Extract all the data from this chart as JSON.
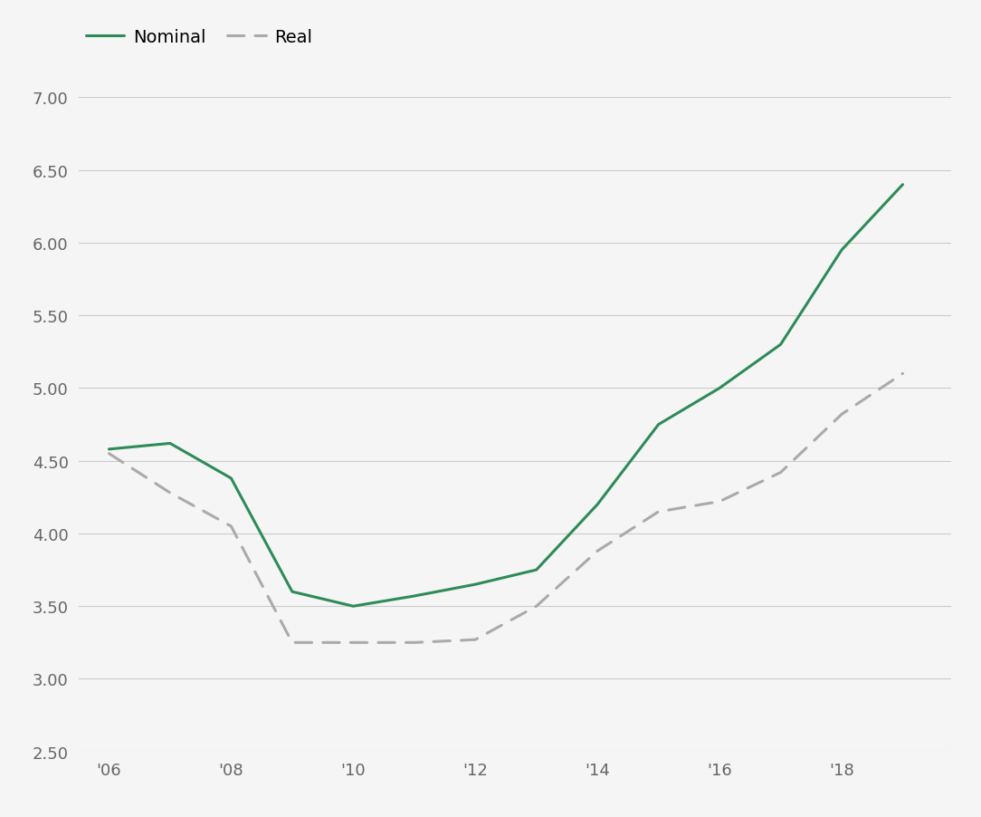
{
  "nominal_x": [
    2006,
    2007,
    2008,
    2009,
    2010,
    2011,
    2012,
    2013,
    2014,
    2015,
    2016,
    2017,
    2018,
    2019
  ],
  "nominal_y": [
    4.58,
    4.62,
    4.38,
    3.6,
    3.5,
    3.57,
    3.65,
    3.75,
    4.2,
    4.75,
    5.0,
    5.3,
    5.95,
    6.4
  ],
  "real_x": [
    2006,
    2007,
    2008,
    2009,
    2010,
    2011,
    2012,
    2013,
    2014,
    2015,
    2016,
    2017,
    2018,
    2019
  ],
  "real_y": [
    4.55,
    4.28,
    4.05,
    3.25,
    3.25,
    3.25,
    3.27,
    3.5,
    3.88,
    4.15,
    4.22,
    4.42,
    4.82,
    5.1
  ],
  "nominal_color": "#2e8b57",
  "real_color": "#aaaaaa",
  "background_color": "#f5f5f5",
  "ylim": [
    2.5,
    7.0
  ],
  "yticks": [
    2.5,
    3.0,
    3.5,
    4.0,
    4.5,
    5.0,
    5.5,
    6.0,
    6.5,
    7.0
  ],
  "xtick_positions": [
    2006,
    2008,
    2010,
    2012,
    2014,
    2016,
    2018
  ],
  "xtick_labels": [
    "'06",
    "'08",
    "'10",
    "'12",
    "'14",
    "'16",
    "'18"
  ],
  "nominal_label": "Nominal",
  "real_label": "Real",
  "grid_color": "#cccccc",
  "line_width": 2.2,
  "legend_fontsize": 14,
  "tick_fontsize": 13
}
